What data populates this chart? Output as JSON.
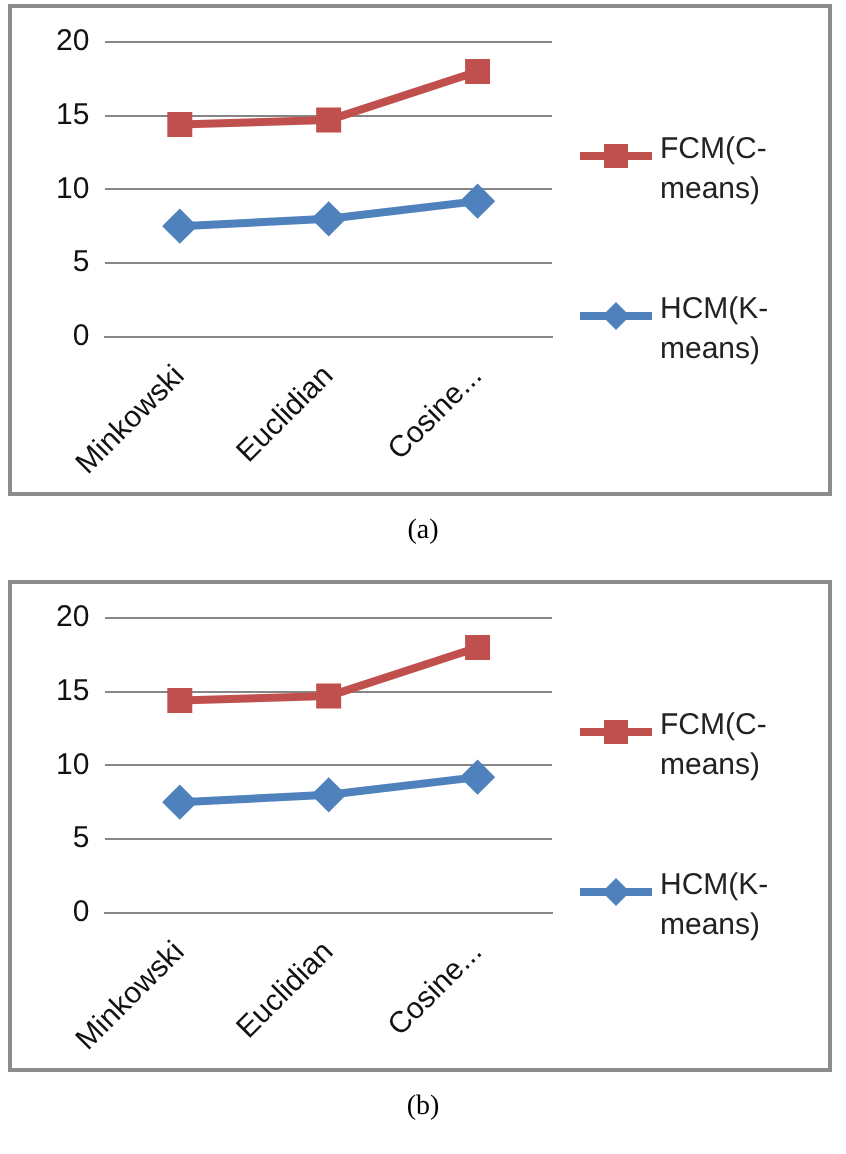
{
  "chart_data": [
    {
      "type": "line",
      "categories": [
        "Minkowski",
        "Euclidian",
        "Cosine..."
      ],
      "series": [
        {
          "name": "FCM(C-means)",
          "color": "#c0504d",
          "values": [
            14.4,
            14.7,
            18
          ],
          "marker": "square"
        },
        {
          "name": "HCM(K-means)",
          "color": "#4f81bd",
          "values": [
            7.5,
            8,
            9.2
          ],
          "marker": "diamond"
        }
      ],
      "ylim": [
        0,
        20
      ],
      "yticks": [
        0,
        5,
        10,
        15,
        20
      ],
      "grid": "y",
      "legend": "right",
      "annotations": [
        "(a)"
      ]
    },
    {
      "type": "line",
      "categories": [
        "Minkowski",
        "Euclidian",
        "Cosine..."
      ],
      "series": [
        {
          "name": "FCM(C-means)",
          "color": "#c0504d",
          "values": [
            14.4,
            14.7,
            18
          ],
          "marker": "square"
        },
        {
          "name": "HCM(K-means)",
          "color": "#4f81bd",
          "values": [
            7.5,
            8,
            9.2
          ],
          "marker": "diamond"
        }
      ],
      "ylim": [
        0,
        20
      ],
      "yticks": [
        0,
        5,
        10,
        15,
        20
      ],
      "grid": "y",
      "legend": "right",
      "annotations": [
        "(b)"
      ]
    }
  ]
}
